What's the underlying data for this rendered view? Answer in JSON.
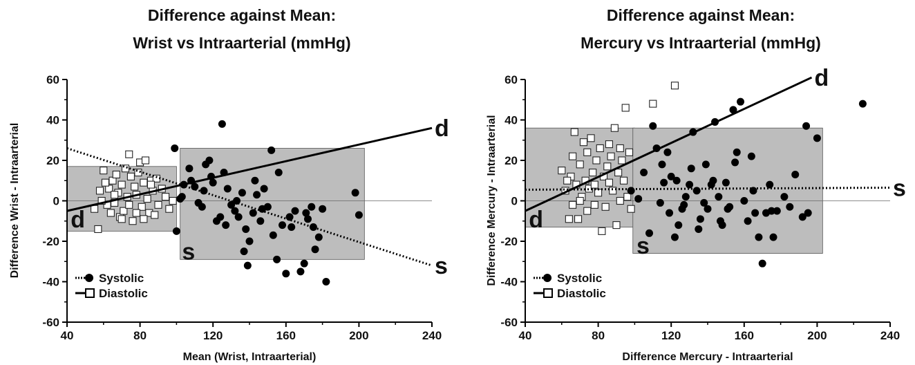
{
  "chart_data": [
    {
      "type": "scatter",
      "title": "Difference against Mean:",
      "subtitle": "Wrist vs Intraarterial (mmHg)",
      "xlabel": "Mean (Wrist, Intraarterial)",
      "ylabel": "Difference Wrist - Intraarterial",
      "xlim": [
        40,
        240
      ],
      "ylim": [
        -60,
        60
      ],
      "xticks": [
        40,
        80,
        120,
        160,
        200,
        240
      ],
      "yticks": [
        -60,
        -40,
        -20,
        0,
        20,
        40,
        60
      ],
      "legend": {
        "position": "bottom-left",
        "entries": [
          "Systolic",
          "Diastolic"
        ]
      },
      "shaded_regions": [
        {
          "series": "Diastolic",
          "x": [
            40,
            100
          ],
          "y": [
            -15,
            17
          ]
        },
        {
          "series": "Systolic",
          "x": [
            102,
            203
          ],
          "y": [
            -29,
            26
          ]
        }
      ],
      "reference_line_y": 0,
      "regression_lines": [
        {
          "series": "Diastolic",
          "style": "solid",
          "x": [
            40,
            240
          ],
          "y": [
            -5,
            36
          ],
          "label": "d"
        },
        {
          "series": "Systolic",
          "style": "dotted",
          "x": [
            40,
            240
          ],
          "y": [
            26,
            -32
          ],
          "label": "s"
        }
      ],
      "annotations": [
        {
          "text": "d",
          "x": 42,
          "y": -9
        },
        {
          "text": "s",
          "x": 103,
          "y": -25
        }
      ],
      "series": [
        {
          "name": "Systolic",
          "marker": "filled-circle",
          "points": [
            [
              99,
              26
            ],
            [
              104,
              8
            ],
            [
              102,
              1
            ],
            [
              100,
              -15
            ],
            [
              103,
              2
            ],
            [
              107,
              16
            ],
            [
              108,
              10
            ],
            [
              110,
              7
            ],
            [
              112,
              -1
            ],
            [
              114,
              -3
            ],
            [
              116,
              18
            ],
            [
              118,
              20
            ],
            [
              120,
              9
            ],
            [
              122,
              -10
            ],
            [
              125,
              38
            ],
            [
              126,
              14
            ],
            [
              128,
              6
            ],
            [
              130,
              -2
            ],
            [
              132,
              -5
            ],
            [
              134,
              -8
            ],
            [
              136,
              4
            ],
            [
              138,
              -14
            ],
            [
              140,
              -20
            ],
            [
              142,
              -6
            ],
            [
              144,
              3
            ],
            [
              146,
              -10
            ],
            [
              148,
              6
            ],
            [
              150,
              -3
            ],
            [
              152,
              25
            ],
            [
              155,
              -29
            ],
            [
              158,
              -12
            ],
            [
              160,
              -36
            ],
            [
              162,
              -8
            ],
            [
              165,
              -5
            ],
            [
              168,
              -35
            ],
            [
              170,
              -31
            ],
            [
              172,
              -9
            ],
            [
              174,
              -3
            ],
            [
              176,
              -24
            ],
            [
              178,
              -18
            ],
            [
              182,
              -40
            ],
            [
              198,
              4
            ],
            [
              200,
              -7
            ],
            [
              115,
              5
            ],
            [
              119,
              12
            ],
            [
              124,
              -8
            ],
            [
              127,
              -12
            ],
            [
              133,
              0
            ],
            [
              137,
              -25
            ],
            [
              139,
              -32
            ],
            [
              143,
              10
            ],
            [
              147,
              -4
            ],
            [
              153,
              -17
            ],
            [
              156,
              14
            ],
            [
              163,
              -13
            ],
            [
              171,
              -6
            ],
            [
              175,
              -13
            ],
            [
              180,
              -4
            ]
          ]
        },
        {
          "name": "Diastolic",
          "marker": "open-square",
          "points": [
            [
              55,
              -4
            ],
            [
              57,
              -14
            ],
            [
              58,
              5
            ],
            [
              60,
              15
            ],
            [
              62,
              -2
            ],
            [
              63,
              6
            ],
            [
              65,
              10
            ],
            [
              66,
              -1
            ],
            [
              67,
              13
            ],
            [
              68,
              4
            ],
            [
              69,
              -8
            ],
            [
              70,
              8
            ],
            [
              71,
              -5
            ],
            [
              72,
              16
            ],
            [
              73,
              2
            ],
            [
              74,
              23
            ],
            [
              75,
              12
            ],
            [
              76,
              -10
            ],
            [
              77,
              7
            ],
            [
              78,
              3
            ],
            [
              79,
              14
            ],
            [
              80,
              19
            ],
            [
              81,
              -3
            ],
            [
              82,
              9
            ],
            [
              83,
              20
            ],
            [
              84,
              1
            ],
            [
              85,
              -6
            ],
            [
              86,
              10
            ],
            [
              87,
              5
            ],
            [
              88,
              -7
            ],
            [
              89,
              11
            ],
            [
              90,
              -2
            ],
            [
              92,
              6
            ],
            [
              94,
              2
            ],
            [
              96,
              -4
            ],
            [
              98,
              0
            ],
            [
              64,
              -6
            ],
            [
              66,
              3
            ],
            [
              70,
              -9
            ],
            [
              74,
              -2
            ],
            [
              78,
              -6
            ],
            [
              82,
              -9
            ],
            [
              86,
              8
            ],
            [
              61,
              9
            ],
            [
              59,
              0
            ]
          ]
        }
      ]
    },
    {
      "type": "scatter",
      "title": "Difference against Mean:",
      "subtitle": "Mercury vs Intraarterial (mmHg)",
      "xlabel": "Difference Mercury - Intraarterial",
      "ylabel": "Difference Mercury - Intraarterial",
      "xlim": [
        40,
        240
      ],
      "ylim": [
        -60,
        60
      ],
      "xticks": [
        40,
        80,
        120,
        160,
        200,
        240
      ],
      "yticks": [
        -60,
        -40,
        -20,
        0,
        20,
        40,
        60
      ],
      "legend": {
        "position": "bottom-left",
        "entries": [
          "Systolic",
          "Diastolic"
        ]
      },
      "shaded_regions": [
        {
          "series": "Diastolic",
          "x": [
            40,
            100
          ],
          "y": [
            -13,
            36
          ]
        },
        {
          "series": "Systolic",
          "x": [
            99,
            203
          ],
          "y": [
            -26,
            36
          ]
        }
      ],
      "reference_line_y": 0,
      "regression_lines": [
        {
          "series": "Diastolic",
          "style": "solid",
          "x": [
            40,
            197
          ],
          "y": [
            -5,
            61
          ],
          "label": "d"
        },
        {
          "series": "Systolic",
          "style": "dotted",
          "x": [
            40,
            240
          ],
          "y": [
            5.5,
            6.5
          ],
          "label": "s"
        }
      ],
      "annotations": [
        {
          "text": "d",
          "x": 42,
          "y": -9
        },
        {
          "text": "s",
          "x": 101,
          "y": -22
        }
      ],
      "series": [
        {
          "name": "Systolic",
          "marker": "filled-circle",
          "points": [
            [
              98,
              5
            ],
            [
              102,
              1
            ],
            [
              105,
              14
            ],
            [
              108,
              -16
            ],
            [
              110,
              37
            ],
            [
              112,
              26
            ],
            [
              114,
              -1
            ],
            [
              116,
              9
            ],
            [
              118,
              24
            ],
            [
              120,
              12
            ],
            [
              122,
              -18
            ],
            [
              124,
              -12
            ],
            [
              126,
              -4
            ],
            [
              128,
              2
            ],
            [
              130,
              8
            ],
            [
              132,
              34
            ],
            [
              134,
              5
            ],
            [
              136,
              -9
            ],
            [
              138,
              -1
            ],
            [
              140,
              -4
            ],
            [
              142,
              8
            ],
            [
              144,
              39
            ],
            [
              146,
              2
            ],
            [
              148,
              -12
            ],
            [
              150,
              9
            ],
            [
              152,
              -3
            ],
            [
              154,
              45
            ],
            [
              156,
              24
            ],
            [
              158,
              49
            ],
            [
              160,
              0
            ],
            [
              162,
              -10
            ],
            [
              164,
              22
            ],
            [
              166,
              -6
            ],
            [
              168,
              -18
            ],
            [
              170,
              -31
            ],
            [
              172,
              -6
            ],
            [
              174,
              8
            ],
            [
              176,
              -18
            ],
            [
              178,
              -5
            ],
            [
              182,
              2
            ],
            [
              185,
              -3
            ],
            [
              188,
              13
            ],
            [
              192,
              -8
            ],
            [
              194,
              37
            ],
            [
              195,
              -6
            ],
            [
              200,
              31
            ],
            [
              225,
              48
            ],
            [
              115,
              18
            ],
            [
              119,
              -6
            ],
            [
              123,
              10
            ],
            [
              127,
              -2
            ],
            [
              131,
              16
            ],
            [
              135,
              -14
            ],
            [
              139,
              18
            ],
            [
              143,
              10
            ],
            [
              147,
              -10
            ],
            [
              151,
              -4
            ],
            [
              155,
              19
            ],
            [
              165,
              5
            ],
            [
              175,
              -5
            ]
          ]
        },
        {
          "name": "Diastolic",
          "marker": "open-square",
          "points": [
            [
              60,
              15
            ],
            [
              62,
              5
            ],
            [
              64,
              -9
            ],
            [
              65,
              12
            ],
            [
              66,
              22
            ],
            [
              67,
              34
            ],
            [
              68,
              8
            ],
            [
              69,
              -9
            ],
            [
              70,
              18
            ],
            [
              71,
              2
            ],
            [
              72,
              29
            ],
            [
              73,
              10
            ],
            [
              74,
              24
            ],
            [
              75,
              6
            ],
            [
              76,
              31
            ],
            [
              77,
              14
            ],
            [
              78,
              -2
            ],
            [
              79,
              20
            ],
            [
              80,
              4
            ],
            [
              81,
              26
            ],
            [
              82,
              -15
            ],
            [
              83,
              12
            ],
            [
              84,
              -3
            ],
            [
              85,
              17
            ],
            [
              86,
              9
            ],
            [
              87,
              22
            ],
            [
              88,
              5
            ],
            [
              89,
              36
            ],
            [
              90,
              -12
            ],
            [
              91,
              14
            ],
            [
              92,
              0
            ],
            [
              93,
              20
            ],
            [
              94,
              10
            ],
            [
              95,
              46
            ],
            [
              96,
              2
            ],
            [
              97,
              24
            ],
            [
              98,
              -4
            ],
            [
              110,
              48
            ],
            [
              122,
              57
            ],
            [
              63,
              10
            ],
            [
              66,
              -2
            ],
            [
              70,
              0
            ],
            [
              74,
              -5
            ],
            [
              78,
              8
            ],
            [
              86,
              28
            ],
            [
              92,
              26
            ]
          ]
        }
      ]
    }
  ]
}
